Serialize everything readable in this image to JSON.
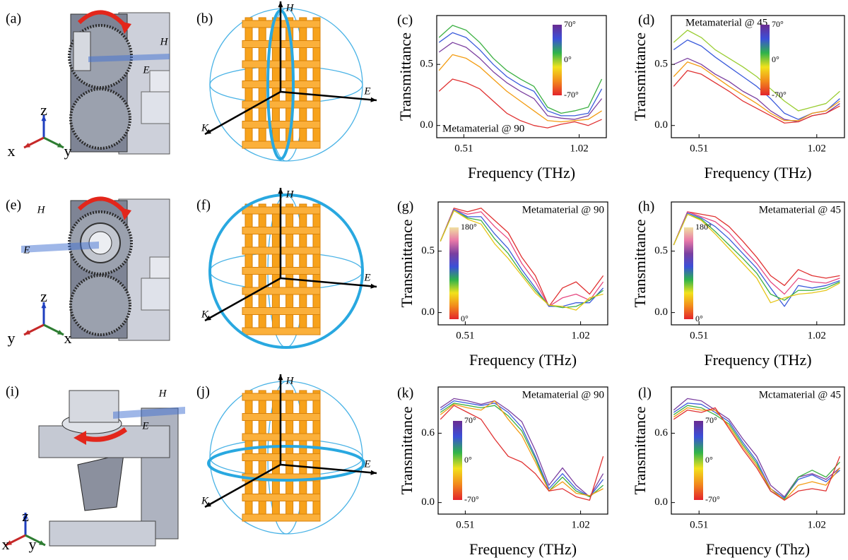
{
  "diagrams": [
    {
      "label": "(a)",
      "texts": [
        "H",
        "E",
        "z",
        "x",
        "y"
      ]
    },
    {
      "label": "(b)",
      "texts": [
        "H",
        "E",
        "K"
      ]
    },
    {
      "label": "(e)",
      "texts": [
        "H",
        "E",
        "z",
        "y",
        "x"
      ]
    },
    {
      "label": "(f)",
      "texts": [
        "H",
        "E",
        "K"
      ]
    },
    {
      "label": "(i)",
      "texts": [
        "H",
        "E",
        "z",
        "x",
        "y"
      ]
    },
    {
      "label": "(j)",
      "texts": [
        "H",
        "E",
        "K"
      ]
    }
  ],
  "chart_data": [
    {
      "type": "line",
      "panel_label": "(c)",
      "annotation": "Metamaterial @ 90",
      "xlabel": "Frequency (THz)",
      "ylabel": "Transmittance",
      "xlim": [
        0.39,
        1.14
      ],
      "xticks": [
        0.51,
        1.02
      ],
      "ylim": [
        -0.1,
        0.9
      ],
      "yticks": [
        {
          "value": 0,
          "label": "0.0"
        },
        0.5
      ],
      "x": [
        0.4,
        0.46,
        0.52,
        0.58,
        0.64,
        0.7,
        0.76,
        0.82,
        0.88,
        0.94,
        1.0,
        1.06,
        1.12
      ],
      "colorbar": {
        "labels": [
          "70°",
          "0°",
          "-70°"
        ],
        "colors": [
          "#6a2c91",
          "#3b4fd8",
          "#2fb34a",
          "#f2e21c",
          "#f28a1c",
          "#e3242b"
        ]
      },
      "series": [
        {
          "color": "#3cb043",
          "values": [
            0.72,
            0.82,
            0.78,
            0.68,
            0.55,
            0.45,
            0.38,
            0.32,
            0.15,
            0.1,
            0.12,
            0.15,
            0.38
          ]
        },
        {
          "color": "#3b5bdb",
          "values": [
            0.68,
            0.76,
            0.72,
            0.62,
            0.5,
            0.4,
            0.33,
            0.28,
            0.12,
            0.08,
            0.08,
            0.1,
            0.3
          ]
        },
        {
          "color": "#7b3fa0",
          "values": [
            0.6,
            0.68,
            0.64,
            0.55,
            0.44,
            0.35,
            0.28,
            0.22,
            0.08,
            0.06,
            0.05,
            0.08,
            0.22
          ]
        },
        {
          "color": "#f39c12",
          "values": [
            0.45,
            0.58,
            0.55,
            0.48,
            0.38,
            0.28,
            0.2,
            0.12,
            0.04,
            0.03,
            0.04,
            0.05,
            0.12
          ]
        },
        {
          "color": "#e03131",
          "values": [
            0.28,
            0.38,
            0.35,
            0.3,
            0.2,
            0.1,
            0.04,
            0.0,
            -0.02,
            0.01,
            0.03,
            0.0,
            0.05
          ]
        }
      ]
    },
    {
      "type": "line",
      "panel_label": "(d)",
      "annotation": "Metamaterial @ 45",
      "xlabel": "Frequency (THz)",
      "ylabel": "Transmittance",
      "xlim": [
        0.39,
        1.14
      ],
      "xticks": [
        0.51,
        1.02
      ],
      "ylim": [
        -0.1,
        0.9
      ],
      "yticks": [
        {
          "value": 0,
          "label": "0.0"
        },
        0.5
      ],
      "x": [
        0.4,
        0.46,
        0.52,
        0.58,
        0.64,
        0.7,
        0.76,
        0.82,
        0.88,
        0.94,
        1.0,
        1.06,
        1.12
      ],
      "colorbar": {
        "labels": [
          "70°",
          "0°",
          "-70°"
        ],
        "colors": [
          "#6a2c91",
          "#3b4fd8",
          "#2fb34a",
          "#f2e21c",
          "#f28a1c",
          "#e3242b"
        ]
      },
      "series": [
        {
          "color": "#9acd32",
          "values": [
            0.68,
            0.78,
            0.72,
            0.62,
            0.55,
            0.48,
            0.4,
            0.3,
            0.2,
            0.12,
            0.15,
            0.18,
            0.28
          ]
        },
        {
          "color": "#3b5bdb",
          "values": [
            0.62,
            0.7,
            0.65,
            0.56,
            0.48,
            0.4,
            0.32,
            0.22,
            0.1,
            0.05,
            0.1,
            0.12,
            0.22
          ]
        },
        {
          "color": "#7b3fa0",
          "values": [
            0.5,
            0.55,
            0.5,
            0.42,
            0.36,
            0.28,
            0.22,
            0.12,
            0.05,
            0.03,
            0.08,
            0.1,
            0.18
          ]
        },
        {
          "color": "#f39c12",
          "values": [
            0.4,
            0.52,
            0.48,
            0.4,
            0.32,
            0.25,
            0.18,
            0.1,
            0.04,
            0.04,
            0.1,
            0.12,
            0.2
          ]
        },
        {
          "color": "#e03131",
          "values": [
            0.32,
            0.45,
            0.42,
            0.35,
            0.28,
            0.2,
            0.14,
            0.08,
            0.02,
            0.03,
            0.08,
            0.1,
            0.16
          ]
        }
      ]
    },
    {
      "type": "line",
      "panel_label": "(g)",
      "annotation": "Metamaterial @ 90",
      "xlabel": "Frequency (THz)",
      "ylabel": "Transmittance",
      "xlim": [
        0.39,
        1.14
      ],
      "xticks": [
        0.51,
        1.02
      ],
      "ylim": [
        -0.1,
        0.9
      ],
      "yticks": [
        {
          "value": 0,
          "label": "0.0"
        },
        0.5
      ],
      "x": [
        0.4,
        0.46,
        0.52,
        0.58,
        0.64,
        0.7,
        0.76,
        0.82,
        0.88,
        0.94,
        1.0,
        1.06,
        1.12
      ],
      "colorbar": {
        "labels": [
          "180°",
          "0°"
        ],
        "colors": [
          "#f0e0a0",
          "#e879a8",
          "#7a3fa0",
          "#3b4fd8",
          "#2fb34a",
          "#f2e21c",
          "#f28a1c",
          "#e3242b"
        ]
      },
      "series": [
        {
          "color": "#e03131",
          "values": [
            0.58,
            0.85,
            0.82,
            0.85,
            0.75,
            0.65,
            0.45,
            0.3,
            0.05,
            0.2,
            0.25,
            0.15,
            0.3
          ]
        },
        {
          "color": "#e64980",
          "values": [
            0.58,
            0.84,
            0.8,
            0.82,
            0.7,
            0.6,
            0.4,
            0.25,
            0.05,
            0.12,
            0.15,
            0.1,
            0.25
          ]
        },
        {
          "color": "#3b5bdb",
          "values": [
            0.58,
            0.84,
            0.78,
            0.78,
            0.64,
            0.52,
            0.35,
            0.2,
            0.05,
            0.05,
            0.08,
            0.08,
            0.2
          ]
        },
        {
          "color": "#3cb043",
          "values": [
            0.58,
            0.83,
            0.77,
            0.75,
            0.6,
            0.48,
            0.32,
            0.18,
            0.06,
            0.04,
            0.05,
            0.1,
            0.18
          ]
        },
        {
          "color": "#e6c619",
          "values": [
            0.58,
            0.83,
            0.76,
            0.72,
            0.56,
            0.44,
            0.3,
            0.16,
            0.06,
            0.05,
            0.02,
            0.12,
            0.15
          ]
        }
      ]
    },
    {
      "type": "line",
      "panel_label": "(h)",
      "annotation": "Metamaterial @ 45",
      "xlabel": "Frequency (THz)",
      "ylabel": "Transmittance",
      "xlim": [
        0.39,
        1.14
      ],
      "xticks": [
        0.51,
        1.02
      ],
      "ylim": [
        -0.1,
        0.9
      ],
      "yticks": [
        {
          "value": 0,
          "label": "0.0"
        },
        0.5
      ],
      "x": [
        0.4,
        0.46,
        0.52,
        0.58,
        0.64,
        0.7,
        0.76,
        0.82,
        0.88,
        0.94,
        1.0,
        1.06,
        1.12
      ],
      "colorbar": {
        "labels": [
          "180°",
          "0°"
        ],
        "colors": [
          "#f0e0a0",
          "#e879a8",
          "#7a3fa0",
          "#3b4fd8",
          "#2fb34a",
          "#f2e21c",
          "#f28a1c",
          "#e3242b"
        ]
      },
      "series": [
        {
          "color": "#e03131",
          "values": [
            0.55,
            0.82,
            0.8,
            0.78,
            0.7,
            0.58,
            0.45,
            0.3,
            0.22,
            0.35,
            0.3,
            0.28,
            0.3
          ]
        },
        {
          "color": "#e64980",
          "values": [
            0.55,
            0.82,
            0.78,
            0.74,
            0.65,
            0.52,
            0.4,
            0.25,
            0.15,
            0.28,
            0.25,
            0.24,
            0.28
          ]
        },
        {
          "color": "#3b5bdb",
          "values": [
            0.55,
            0.81,
            0.77,
            0.7,
            0.6,
            0.48,
            0.36,
            0.2,
            0.05,
            0.22,
            0.2,
            0.22,
            0.26
          ]
        },
        {
          "color": "#3cb043",
          "values": [
            0.55,
            0.8,
            0.76,
            0.66,
            0.55,
            0.44,
            0.32,
            0.15,
            0.1,
            0.18,
            0.18,
            0.2,
            0.25
          ]
        },
        {
          "color": "#e6c619",
          "values": [
            0.55,
            0.8,
            0.75,
            0.64,
            0.52,
            0.4,
            0.28,
            0.08,
            0.12,
            0.15,
            0.16,
            0.18,
            0.24
          ]
        }
      ]
    },
    {
      "type": "line",
      "panel_label": "(k)",
      "annotation": "Metamaterial @ 90",
      "xlabel": "Frequency (THz)",
      "ylabel": "Transmittance",
      "xlim": [
        0.39,
        1.14
      ],
      "xticks": [
        0.51,
        1.02
      ],
      "ylim": [
        -0.1,
        1.0
      ],
      "yticks": [
        {
          "value": 0,
          "label": "0.0"
        },
        0.6
      ],
      "x": [
        0.4,
        0.46,
        0.52,
        0.58,
        0.64,
        0.7,
        0.76,
        0.82,
        0.88,
        0.94,
        1.0,
        1.06,
        1.12
      ],
      "colorbar": {
        "labels": [
          "70°",
          "0°",
          "-70°"
        ],
        "colors": [
          "#6a2c91",
          "#3b4fd8",
          "#2fb34a",
          "#f2e21c",
          "#f28a1c",
          "#e3242b"
        ]
      },
      "series": [
        {
          "color": "#7b3fa0",
          "values": [
            0.82,
            0.9,
            0.88,
            0.85,
            0.88,
            0.8,
            0.7,
            0.45,
            0.15,
            0.3,
            0.15,
            0.05,
            0.25
          ]
        },
        {
          "color": "#3b5bdb",
          "values": [
            0.8,
            0.88,
            0.86,
            0.84,
            0.86,
            0.78,
            0.65,
            0.4,
            0.12,
            0.25,
            0.12,
            0.05,
            0.2
          ]
        },
        {
          "color": "#3cb043",
          "values": [
            0.78,
            0.86,
            0.84,
            0.82,
            0.84,
            0.75,
            0.62,
            0.38,
            0.1,
            0.22,
            0.1,
            0.05,
            0.15
          ]
        },
        {
          "color": "#f39c12",
          "values": [
            0.76,
            0.85,
            0.82,
            0.8,
            0.88,
            0.72,
            0.58,
            0.35,
            0.1,
            0.18,
            0.08,
            0.06,
            0.12
          ]
        },
        {
          "color": "#e03131",
          "values": [
            0.72,
            0.84,
            0.78,
            0.72,
            0.55,
            0.4,
            0.35,
            0.25,
            0.1,
            0.12,
            0.05,
            0.02,
            0.4
          ]
        }
      ]
    },
    {
      "type": "line",
      "panel_label": "(l)",
      "annotation": "Mctamaterial @ 45",
      "xlabel": "Frequency (Thz)",
      "ylabel": "Transmittance",
      "xlim": [
        0.39,
        1.14
      ],
      "xticks": [
        0.51,
        1.02
      ],
      "ylim": [
        -0.1,
        1.0
      ],
      "yticks": [
        {
          "value": 0,
          "label": "0.0"
        },
        0.6
      ],
      "x": [
        0.4,
        0.46,
        0.52,
        0.58,
        0.64,
        0.7,
        0.76,
        0.82,
        0.88,
        0.94,
        1.0,
        1.06,
        1.12
      ],
      "colorbar": {
        "labels": [
          "70°",
          "0°",
          "-70°"
        ],
        "colors": [
          "#6a2c91",
          "#3b4fd8",
          "#2fb34a",
          "#f2e21c",
          "#f28a1c",
          "#e3242b"
        ]
      },
      "series": [
        {
          "color": "#7b3fa0",
          "values": [
            0.8,
            0.9,
            0.88,
            0.8,
            0.72,
            0.55,
            0.4,
            0.15,
            0.05,
            0.22,
            0.25,
            0.2,
            0.3
          ]
        },
        {
          "color": "#3b5bdb",
          "values": [
            0.78,
            0.86,
            0.85,
            0.78,
            0.7,
            0.52,
            0.36,
            0.12,
            0.04,
            0.2,
            0.24,
            0.18,
            0.28
          ]
        },
        {
          "color": "#3cb043",
          "values": [
            0.76,
            0.84,
            0.82,
            0.76,
            0.68,
            0.5,
            0.34,
            0.1,
            0.03,
            0.22,
            0.28,
            0.22,
            0.35
          ]
        },
        {
          "color": "#f39c12",
          "values": [
            0.74,
            0.82,
            0.8,
            0.8,
            0.66,
            0.48,
            0.32,
            0.12,
            0.02,
            0.15,
            0.18,
            0.15,
            0.3
          ]
        },
        {
          "color": "#e03131",
          "values": [
            0.72,
            0.8,
            0.78,
            0.82,
            0.64,
            0.46,
            0.3,
            0.1,
            0.02,
            0.1,
            0.12,
            0.1,
            0.4
          ]
        }
      ]
    }
  ]
}
